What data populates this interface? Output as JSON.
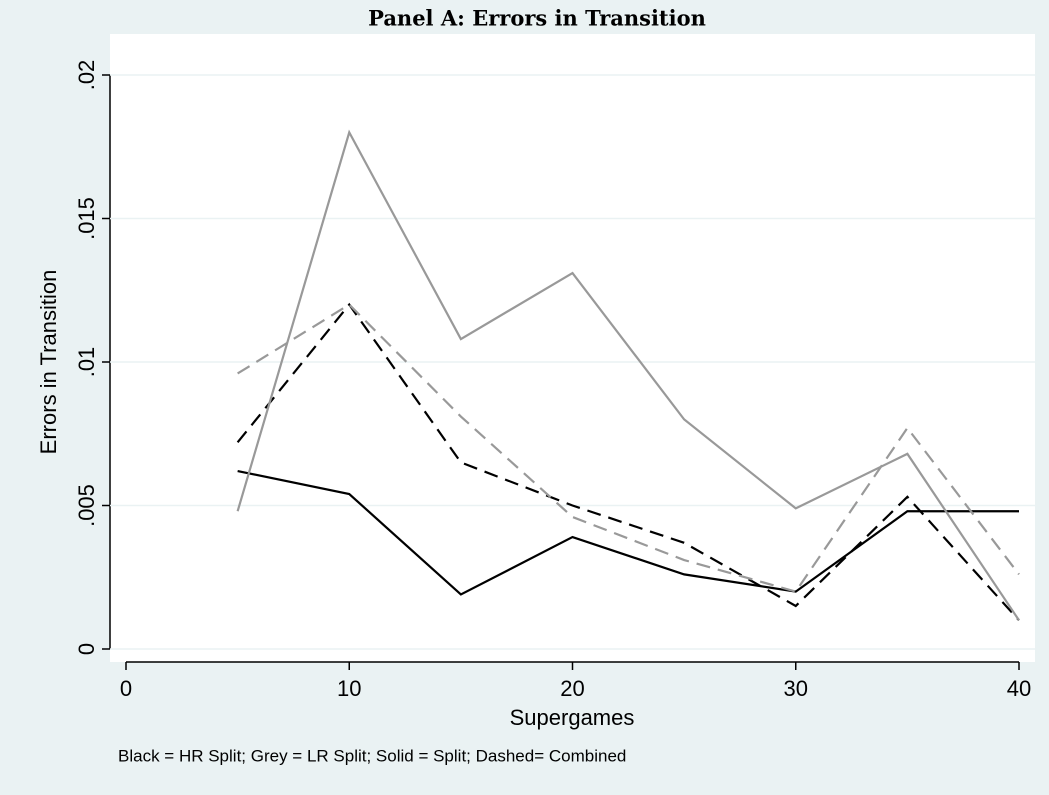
{
  "chart_data": {
    "type": "line",
    "title": "Panel A: Errors in Transition",
    "x_label": "Supergames",
    "y_label": "Errors in Transition",
    "note": "Black = HR Split; Grey = LR Split; Solid = Split; Dashed= Combined",
    "x": [
      5,
      10,
      15,
      20,
      25,
      30,
      35,
      40
    ],
    "series": [
      {
        "color": "#000000",
        "dashed": false,
        "values": [
          0.0062,
          0.0054,
          0.0019,
          0.0039,
          0.0026,
          0.002,
          0.0048,
          0.0048
        ]
      },
      {
        "color": "#000000",
        "dashed": true,
        "values": [
          0.0072,
          0.012,
          0.0065,
          0.005,
          0.0037,
          0.0015,
          0.0053,
          0.001
        ]
      },
      {
        "color": "#999999",
        "dashed": false,
        "values": [
          0.0048,
          0.018,
          0.0108,
          0.0131,
          0.008,
          0.0049,
          0.0068,
          0.001
        ]
      },
      {
        "color": "#999999",
        "dashed": true,
        "values": [
          0.0096,
          0.012,
          0.0081,
          0.0046,
          0.0031,
          0.002,
          0.0077,
          0.0026
        ]
      }
    ],
    "xlim": [
      0,
      40
    ],
    "xticks": [
      0,
      10,
      20,
      30,
      40
    ],
    "ylim": [
      0,
      0.02
    ],
    "yticks": [
      0,
      {
        "value": 0.005,
        "label": ".005"
      },
      {
        "value": 0.01,
        "label": ".01"
      },
      {
        "value": 0.015,
        "label": ".015"
      },
      {
        "value": 0.02,
        "label": ".02"
      }
    ],
    "grid": true
  }
}
